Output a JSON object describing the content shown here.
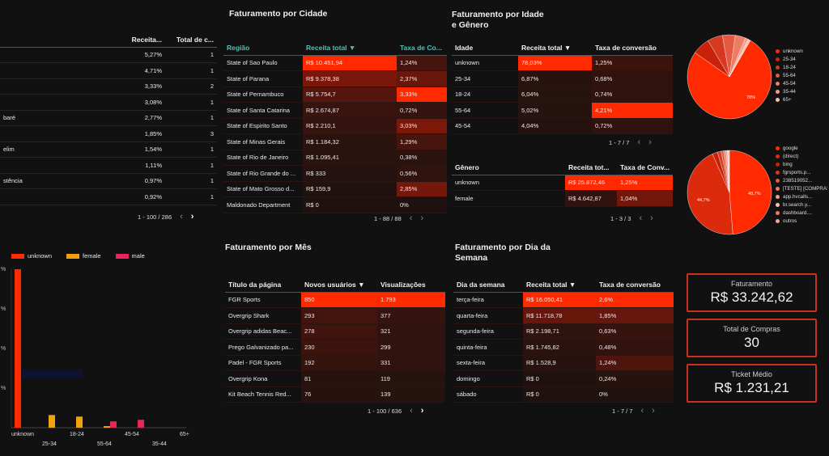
{
  "colors": {
    "accent": "#ff2a00",
    "female": "#f2a00c",
    "male": "#e8245a",
    "teal": "#4fc2b8",
    "kpi_border": "#c8321a"
  },
  "left_table": {
    "headers": [
      "",
      "Receita...",
      "Total de c..."
    ],
    "rows": [
      {
        "name": "",
        "pct": "5,27%",
        "total": "1"
      },
      {
        "name": "",
        "pct": "4,71%",
        "total": "1"
      },
      {
        "name": "",
        "pct": "3,33%",
        "total": "2"
      },
      {
        "name": "",
        "pct": "3,08%",
        "total": "1"
      },
      {
        "name": "baré",
        "pct": "2,77%",
        "total": "1"
      },
      {
        "name": "",
        "pct": "1,85%",
        "total": "3"
      },
      {
        "name": "elim",
        "pct": "1,54%",
        "total": "1"
      },
      {
        "name": "",
        "pct": "1,11%",
        "total": "1"
      },
      {
        "name": "stência",
        "pct": "0,97%",
        "total": "1"
      },
      {
        "name": "",
        "pct": "0,92%",
        "total": "1"
      }
    ],
    "pager": "1 - 100 / 286"
  },
  "cidade": {
    "title": "Faturamento por Cidade",
    "headers": [
      "Região",
      "Receita total ▼",
      "Taxa de Co..."
    ],
    "rows": [
      {
        "a": "State of Sao Paulo",
        "b": "R$ 10.451,94",
        "c": "1,24%"
      },
      {
        "a": "State of Parana",
        "b": "R$ 9.378,38",
        "c": "2,37%"
      },
      {
        "a": "State of Pernambuco",
        "b": "R$ 5.754,7",
        "c": "3,33%"
      },
      {
        "a": "State of Santa Catarina",
        "b": "R$ 2.674,87",
        "c": "0,72%"
      },
      {
        "a": "State of Espirito Santo",
        "b": "R$ 2.210,1",
        "c": "3,03%"
      },
      {
        "a": "State of Minas Gerais",
        "b": "R$ 1.184,32",
        "c": "1,29%"
      },
      {
        "a": "State of Rio de Janeiro",
        "b": "R$ 1.095,41",
        "c": "0,38%"
      },
      {
        "a": "State of Rio Grande do ...",
        "b": "R$ 333",
        "c": "0,56%"
      },
      {
        "a": "State of Mato Grosso d...",
        "b": "R$ 159,9",
        "c": "2,85%"
      },
      {
        "a": "Maldonado Department",
        "b": "R$ 0",
        "c": "0%"
      }
    ],
    "pager": "1 - 88 / 88"
  },
  "idade": {
    "title_l1": "Faturamento por Idade",
    "title_l2": "e Gênero",
    "headers": [
      "Idade",
      "Receita total ▼",
      "Taxa de conversão"
    ],
    "rows": [
      {
        "a": "unknown",
        "b": "78,03%",
        "c": "1,25%"
      },
      {
        "a": "25-34",
        "b": "6,87%",
        "c": "0,68%"
      },
      {
        "a": "18-24",
        "b": "6,04%",
        "c": "0,74%"
      },
      {
        "a": "55-64",
        "b": "5,02%",
        "c": "4,21%"
      },
      {
        "a": "45-54",
        "b": "4,04%",
        "c": "0,72%"
      }
    ],
    "pager": "1 - 7 / 7"
  },
  "genero": {
    "headers": [
      "Gênero",
      "Receita tot...",
      "Taxa de Conv..."
    ],
    "rows": [
      {
        "a": "unknown",
        "b": "R$ 25.872,46",
        "c": "1,25%"
      },
      {
        "a": "female",
        "b": "R$ 4.642,87",
        "c": "1,04%"
      }
    ],
    "pager": "1 - 3 / 3"
  },
  "mes": {
    "title": "Faturamento por Mês",
    "headers": [
      "Título da página",
      "Novos usuários ▼",
      "Visualizações"
    ],
    "rows": [
      {
        "a": "FGR Sports",
        "b": "850",
        "c": "1.793"
      },
      {
        "a": "Overgrip Shark",
        "b": "293",
        "c": "377"
      },
      {
        "a": "Overgrip adidas Beac...",
        "b": "278",
        "c": "321"
      },
      {
        "a": "Prego Galvanizado pa...",
        "b": "230",
        "c": "299"
      },
      {
        "a": "Padel - FGR Sports",
        "b": "192",
        "c": "331"
      },
      {
        "a": "Overgrip Kona",
        "b": "81",
        "c": "119"
      },
      {
        "a": "Kit Beach Tennis Red...",
        "b": "76",
        "c": "139"
      }
    ],
    "pager": "1 - 100 / 636"
  },
  "semana": {
    "title_l1": "Faturamento por Dia da",
    "title_l2": "Semana",
    "headers": [
      "Dia da semana",
      "Receita total ▼",
      "Taxa de conversão"
    ],
    "rows": [
      {
        "a": "terça-feira",
        "b": "R$ 16.050,41",
        "c": "2,6%"
      },
      {
        "a": "quarta-feira",
        "b": "R$ 11.718,78",
        "c": "1,85%"
      },
      {
        "a": "segunda-feira",
        "b": "R$ 2.198,71",
        "c": "0,63%"
      },
      {
        "a": "quinta-feira",
        "b": "R$ 1.745,82",
        "c": "0,48%"
      },
      {
        "a": "sexta-feira",
        "b": "R$ 1.528,9",
        "c": "1,24%"
      },
      {
        "a": "domingo",
        "b": "R$ 0",
        "c": "0,24%"
      },
      {
        "a": "sábado",
        "b": "R$ 0",
        "c": "0%"
      }
    ],
    "pager": "1 - 7 / 7"
  },
  "kpis": {
    "faturamento": {
      "label": "Faturamento",
      "value": "R$ 33.242,62"
    },
    "compras": {
      "label": "Total de Compras",
      "value": "30"
    },
    "ticket": {
      "label": "Ticket Médio",
      "value": "R$ 1.231,21"
    }
  },
  "pie_age": {
    "legend": [
      "unknown",
      "25-34",
      "18-24",
      "55-64",
      "45-54",
      "35-44",
      "65+"
    ],
    "label": "78%"
  },
  "pie_source": {
    "legend": [
      "google",
      "(direct)",
      "bing",
      "fgrsports.p...",
      "238519052...",
      "[TESTE] [COMPRAS] [AUTOMATI...",
      "app.hvcalls...",
      "br.search.y...",
      "dashboard....",
      "outros"
    ],
    "label_left": "44,7%",
    "label_right": "48,7%"
  },
  "chart_data": {
    "type": "bar",
    "categories": [
      "unknown",
      "25-34",
      "18-24",
      "55-64",
      "45-54",
      "35-44",
      "65+"
    ],
    "series": [
      {
        "name": "unknown",
        "values": [
          100,
          0,
          0,
          0,
          0,
          0,
          0
        ]
      },
      {
        "name": "female",
        "values": [
          0,
          8,
          7,
          1,
          0,
          0,
          0
        ]
      },
      {
        "name": "male",
        "values": [
          0,
          0,
          0,
          4,
          5,
          0,
          0
        ]
      }
    ],
    "ylim": [
      0,
      100
    ],
    "ytick_labels": [
      "%",
      "%",
      "%",
      "%"
    ]
  }
}
